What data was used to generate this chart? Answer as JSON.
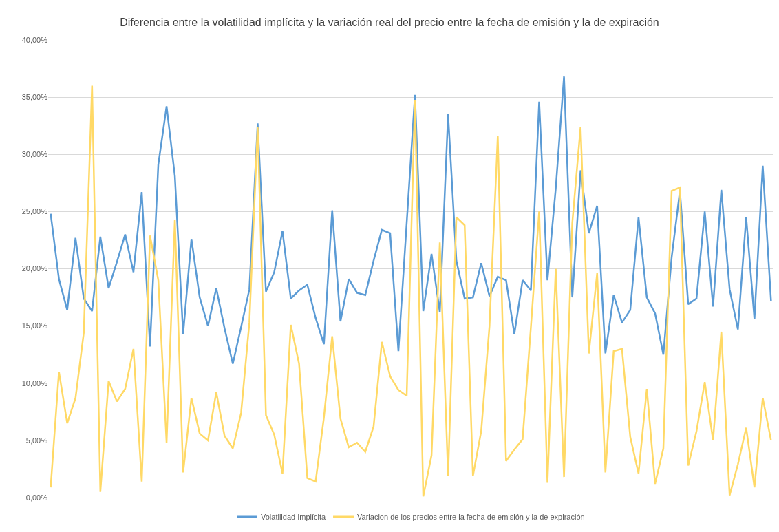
{
  "chart_data": {
    "type": "line",
    "title": "Diferencia entre la volatilidad implícita y la variación real del precio entre la fecha de emisión y la de expiración",
    "categories": [
      null,
      null,
      null,
      null,
      null,
      null,
      null,
      null,
      null,
      null,
      null,
      null,
      null,
      null,
      null,
      null,
      null,
      null,
      null,
      null,
      null,
      null,
      null,
      null,
      null,
      null,
      null,
      null,
      null,
      null,
      null,
      null,
      null,
      null,
      null,
      null,
      null,
      null,
      null,
      null,
      null,
      null,
      null,
      null,
      null,
      null,
      null,
      null,
      null,
      null,
      null,
      null,
      null,
      null,
      null,
      null,
      null,
      null,
      null,
      null,
      null,
      null,
      null,
      null,
      null,
      null,
      null,
      null,
      null,
      null,
      null,
      null,
      null,
      null,
      null,
      null,
      null,
      null,
      null,
      null,
      null,
      null,
      null,
      null,
      null,
      null,
      null,
      null
    ],
    "series": [
      {
        "name": "Volatilidad Implícita",
        "color": "#5b9bd5",
        "values": [
          24.8,
          19.1,
          16.4,
          22.7,
          17.4,
          16.3,
          22.8,
          18.3,
          20.6,
          23.0,
          19.7,
          26.7,
          13.2,
          29.1,
          34.2,
          28.1,
          14.3,
          22.6,
          17.5,
          15.0,
          18.3,
          14.8,
          11.7,
          14.9,
          18.2,
          32.7,
          18.0,
          19.7,
          23.3,
          17.4,
          18.1,
          18.6,
          15.7,
          13.4,
          25.1,
          15.4,
          19.1,
          17.9,
          17.7,
          20.7,
          23.4,
          23.1,
          12.8,
          24.0,
          35.2,
          16.3,
          21.3,
          16.2,
          33.5,
          20.7,
          17.4,
          17.5,
          20.5,
          17.6,
          19.3,
          19.0,
          14.3,
          19.0,
          18.1,
          34.6,
          19.0,
          27.0,
          36.8,
          17.5,
          28.6,
          23.1,
          25.5,
          12.6,
          17.7,
          15.3,
          16.4,
          24.5,
          17.5,
          16.1,
          12.5,
          21.0,
          26.8,
          16.9,
          17.4,
          25.0,
          16.7,
          26.9,
          18.2,
          14.7,
          24.5,
          15.6,
          29.0,
          17.2
        ]
      },
      {
        "name": "Variacion de los precios entre la fecha de emisión y la de expiración",
        "color": "#ffd966",
        "values": [
          0.9,
          11.0,
          6.5,
          8.7,
          14.4,
          36.0,
          0.5,
          10.2,
          8.4,
          9.5,
          13.0,
          1.4,
          22.9,
          19.0,
          4.8,
          24.3,
          2.2,
          8.7,
          5.6,
          5.0,
          9.2,
          5.4,
          4.3,
          7.4,
          15.3,
          32.4,
          7.2,
          5.5,
          2.1,
          15.1,
          11.7,
          1.7,
          1.4,
          7.0,
          14.1,
          6.9,
          4.4,
          4.8,
          4.0,
          6.2,
          13.6,
          10.6,
          9.4,
          8.9,
          34.7,
          0.1,
          3.7,
          22.3,
          1.9,
          24.5,
          23.8,
          1.9,
          5.8,
          15.0,
          31.6,
          3.2,
          4.2,
          5.1,
          14.9,
          25.0,
          1.3,
          20.0,
          1.8,
          24.0,
          32.4,
          12.6,
          19.6,
          2.2,
          12.8,
          13.0,
          5.3,
          2.1,
          9.5,
          1.2,
          4.3,
          26.8,
          27.1,
          2.8,
          5.8,
          10.1,
          5.0,
          14.5,
          0.2,
          2.9,
          6.1,
          0.9,
          8.7,
          5.0
        ]
      }
    ],
    "ylim": [
      0,
      40
    ],
    "yticks": [
      {
        "value": 0,
        "label": "0,00%"
      },
      {
        "value": 5,
        "label": "5,00%"
      },
      {
        "value": 10,
        "label": "10,00%"
      },
      {
        "value": 15,
        "label": "15,00%"
      },
      {
        "value": 20,
        "label": "20,00%"
      },
      {
        "value": 25,
        "label": "25,00%"
      },
      {
        "value": 30,
        "label": "30,00%"
      },
      {
        "value": 35,
        "label": "35,00%"
      },
      {
        "value": 40,
        "label": "40,00%"
      }
    ],
    "grid": "y",
    "legend": "bottom",
    "marker": "none",
    "line_style": "solid"
  }
}
